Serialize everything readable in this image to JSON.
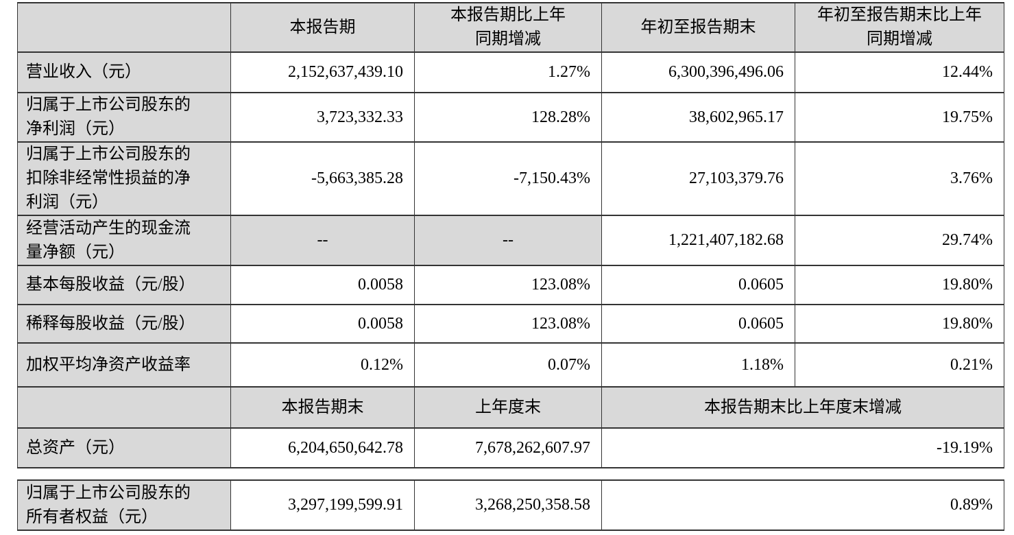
{
  "colors": {
    "cell_shade": "#d9d9d9",
    "border_color": "#333333",
    "page_bg": "#ffffff",
    "text_color": "#000000"
  },
  "summary": {
    "period_headers": [
      "",
      "本报告期",
      "本报告期比上年\n同期增减",
      "年初至报告期末",
      "年初至报告期末比上年\n同期增减"
    ],
    "period_rows": [
      {
        "label": "营业收入（元）",
        "values": [
          "2,152,637,439.10",
          "1.27%",
          "6,300,396,496.06",
          "12.44%"
        ]
      },
      {
        "label": "归属于上市公司股东的\n净利润（元）",
        "values": [
          "3,723,332.33",
          "128.28%",
          "38,602,965.17",
          "19.75%"
        ]
      },
      {
        "label": "归属于上市公司股东的\n扣除非经常性损益的净\n利润（元）",
        "values": [
          "-5,663,385.28",
          "-7,150.43%",
          "27,103,379.76",
          "3.76%"
        ]
      },
      {
        "label": "经营活动产生的现金流\n量净额（元）",
        "values": [
          "--",
          "--",
          "1,221,407,182.68",
          "29.74%"
        ]
      },
      {
        "label": "基本每股收益（元/股）",
        "values": [
          "0.0058",
          "123.08%",
          "0.0605",
          "19.80%"
        ]
      },
      {
        "label": "稀释每股收益（元/股）",
        "values": [
          "0.0058",
          "123.08%",
          "0.0605",
          "19.80%"
        ]
      },
      {
        "label": "加权平均净资产收益率",
        "values": [
          "0.12%",
          "0.07%",
          "1.18%",
          "0.21%"
        ]
      }
    ],
    "eop_headers": [
      "",
      "本报告期末",
      "上年度末",
      "本报告期末比上年度末增减"
    ],
    "eop_rows": [
      {
        "label": "总资产（元）",
        "values": [
          "6,204,650,642.78",
          "7,678,262,607.97",
          "-19.19%"
        ]
      },
      {
        "label": "归属于上市公司股东的\n所有者权益（元）",
        "values": [
          "3,297,199,599.91",
          "3,268,250,358.58",
          "0.89%"
        ]
      }
    ]
  }
}
